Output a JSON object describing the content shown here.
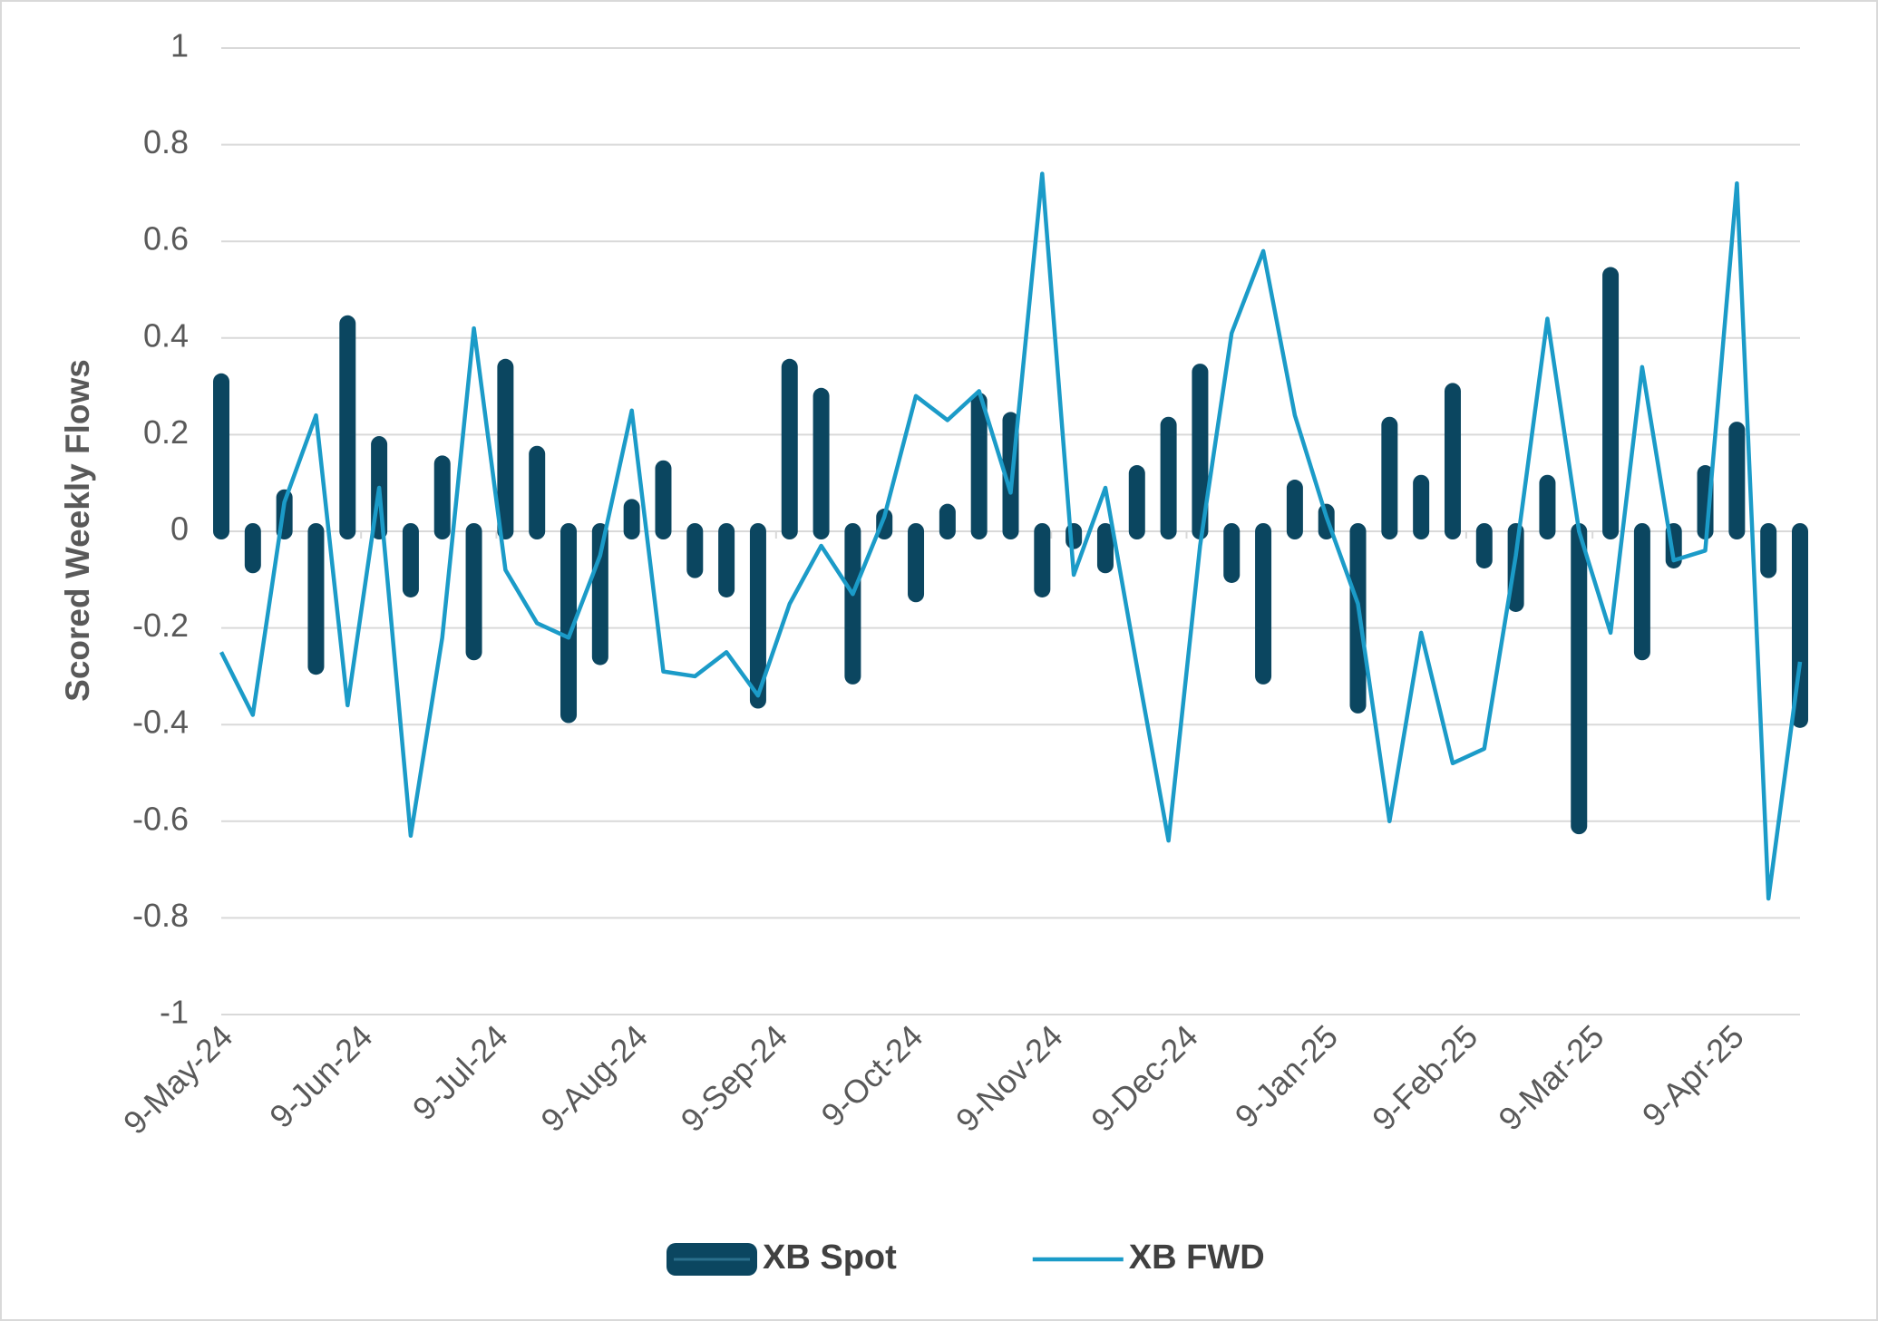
{
  "chart_data": {
    "type": "bar-line",
    "y_label": "Scored Weekly Flows",
    "x": [
      "2024-05-09",
      "2024-05-16",
      "2024-05-23",
      "2024-05-30",
      "2024-06-06",
      "2024-06-13",
      "2024-06-20",
      "2024-06-27",
      "2024-07-04",
      "2024-07-11",
      "2024-07-18",
      "2024-07-25",
      "2024-08-01",
      "2024-08-08",
      "2024-08-15",
      "2024-08-22",
      "2024-08-29",
      "2024-09-05",
      "2024-09-12",
      "2024-09-19",
      "2024-09-26",
      "2024-10-03",
      "2024-10-10",
      "2024-10-17",
      "2024-10-24",
      "2024-10-31",
      "2024-11-07",
      "2024-11-14",
      "2024-11-21",
      "2024-11-28",
      "2024-12-05",
      "2024-12-12",
      "2024-12-19",
      "2024-12-26",
      "2025-01-02",
      "2025-01-09",
      "2025-01-16",
      "2025-01-23",
      "2025-01-30",
      "2025-02-06",
      "2025-02-13",
      "2025-02-20",
      "2025-02-27",
      "2025-03-06",
      "2025-03-13",
      "2025-03-20",
      "2025-03-27",
      "2025-04-03",
      "2025-04-10",
      "2025-04-17",
      "2025-04-24"
    ],
    "series": [
      {
        "name": "XB Spot",
        "kind": "bar",
        "color": "#0b4660",
        "values": [
          0.31,
          -0.07,
          0.07,
          -0.28,
          0.43,
          0.18,
          -0.12,
          0.14,
          -0.25,
          0.34,
          0.16,
          -0.38,
          -0.26,
          0.05,
          0.13,
          -0.08,
          -0.12,
          -0.35,
          0.34,
          0.28,
          -0.3,
          0.03,
          -0.13,
          0.04,
          0.27,
          0.23,
          -0.12,
          -0.02,
          -0.07,
          0.12,
          0.22,
          0.33,
          -0.09,
          -0.3,
          0.09,
          0.04,
          -0.36,
          0.22,
          0.1,
          0.29,
          -0.06,
          -0.15,
          0.1,
          -0.61,
          0.53,
          -0.25,
          -0.06,
          0.12,
          0.21,
          -0.08,
          -0.39
        ]
      },
      {
        "name": "XB FWD",
        "kind": "line",
        "color": "#1b9bc8",
        "values": [
          -0.25,
          -0.38,
          0.06,
          0.24,
          -0.36,
          0.09,
          -0.63,
          -0.22,
          0.42,
          -0.08,
          -0.19,
          -0.22,
          -0.05,
          0.25,
          -0.29,
          -0.3,
          -0.25,
          -0.34,
          -0.15,
          -0.03,
          -0.13,
          0.03,
          0.28,
          0.23,
          0.29,
          0.08,
          0.74,
          -0.09,
          0.09,
          -0.28,
          -0.64,
          -0.03,
          0.41,
          0.58,
          0.24,
          0.03,
          -0.15,
          -0.6,
          -0.21,
          -0.48,
          -0.45,
          -0.05,
          0.44,
          0.0,
          -0.21,
          0.34,
          -0.06,
          -0.04,
          0.72,
          -0.76,
          -0.27
        ]
      }
    ],
    "xlim": [
      "2024-05-09",
      "2025-04-24"
    ],
    "xticks": [
      {
        "value": "2024-05-09",
        "label": "9-May-24"
      },
      {
        "value": "2024-06-09",
        "label": "9-Jun-24"
      },
      {
        "value": "2024-07-09",
        "label": "9-Jul-24"
      },
      {
        "value": "2024-08-09",
        "label": "9-Aug-24"
      },
      {
        "value": "2024-09-09",
        "label": "9-Sep-24"
      },
      {
        "value": "2024-10-09",
        "label": "9-Oct-24"
      },
      {
        "value": "2024-11-09",
        "label": "9-Nov-24"
      },
      {
        "value": "2024-12-09",
        "label": "9-Dec-24"
      },
      {
        "value": "2025-01-09",
        "label": "9-Jan-25"
      },
      {
        "value": "2025-02-09",
        "label": "9-Feb-25"
      },
      {
        "value": "2025-03-09",
        "label": "9-Mar-25"
      },
      {
        "value": "2025-04-09",
        "label": "9-Apr-25"
      }
    ],
    "ylim": [
      -1,
      1
    ],
    "yticks": [
      -1,
      -0.8,
      -0.6,
      -0.4,
      -0.2,
      0,
      0.2,
      0.4,
      0.6,
      0.8,
      1
    ],
    "grid": true,
    "legend": "bottom"
  }
}
